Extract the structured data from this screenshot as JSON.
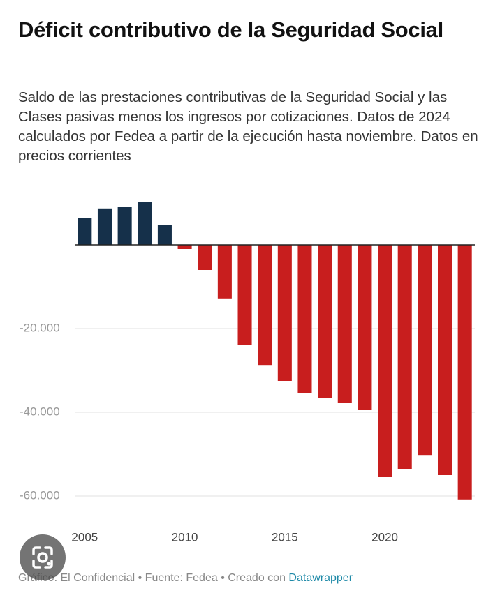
{
  "chart_data": {
    "type": "bar",
    "title": "Déficit contributivo de la Seguridad Social",
    "subtitle": "Saldo de las prestaciones contributivas de la Seguridad Social y las Clases pasivas menos los ingresos por cotizaciones. Datos de 2024 calculados por Fedea a partir de la ejecución hasta noviembre. Datos en precios corrientes",
    "source": "Gráfico: El Confidencial • Fuente: Fedea • Creado con",
    "credit": "Datawrapper",
    "x": [
      2005,
      2006,
      2007,
      2008,
      2009,
      2010,
      2011,
      2012,
      2013,
      2014,
      2015,
      2016,
      2017,
      2018,
      2019,
      2020,
      2021,
      2022,
      2023,
      2024
    ],
    "values": [
      6500,
      8700,
      9000,
      10300,
      4800,
      -1000,
      -6000,
      -12800,
      -24000,
      -28700,
      -32500,
      -35500,
      -36500,
      -37700,
      -39500,
      -55500,
      -53500,
      -50200,
      -55000,
      -60800
    ],
    "positive_color": "#15304a",
    "negative_color": "#c81e1e",
    "xlim": [
      2004.5,
      2024.5
    ],
    "xticks": [
      2005,
      2010,
      2015,
      2020
    ],
    "ylim": [
      -62000,
      11000
    ],
    "yticks": [
      {
        "value": -20000,
        "label": "-20.000"
      },
      {
        "value": -40000,
        "label": "-40.000"
      },
      {
        "value": -60000,
        "label": "-60.000"
      }
    ],
    "grid": true
  }
}
